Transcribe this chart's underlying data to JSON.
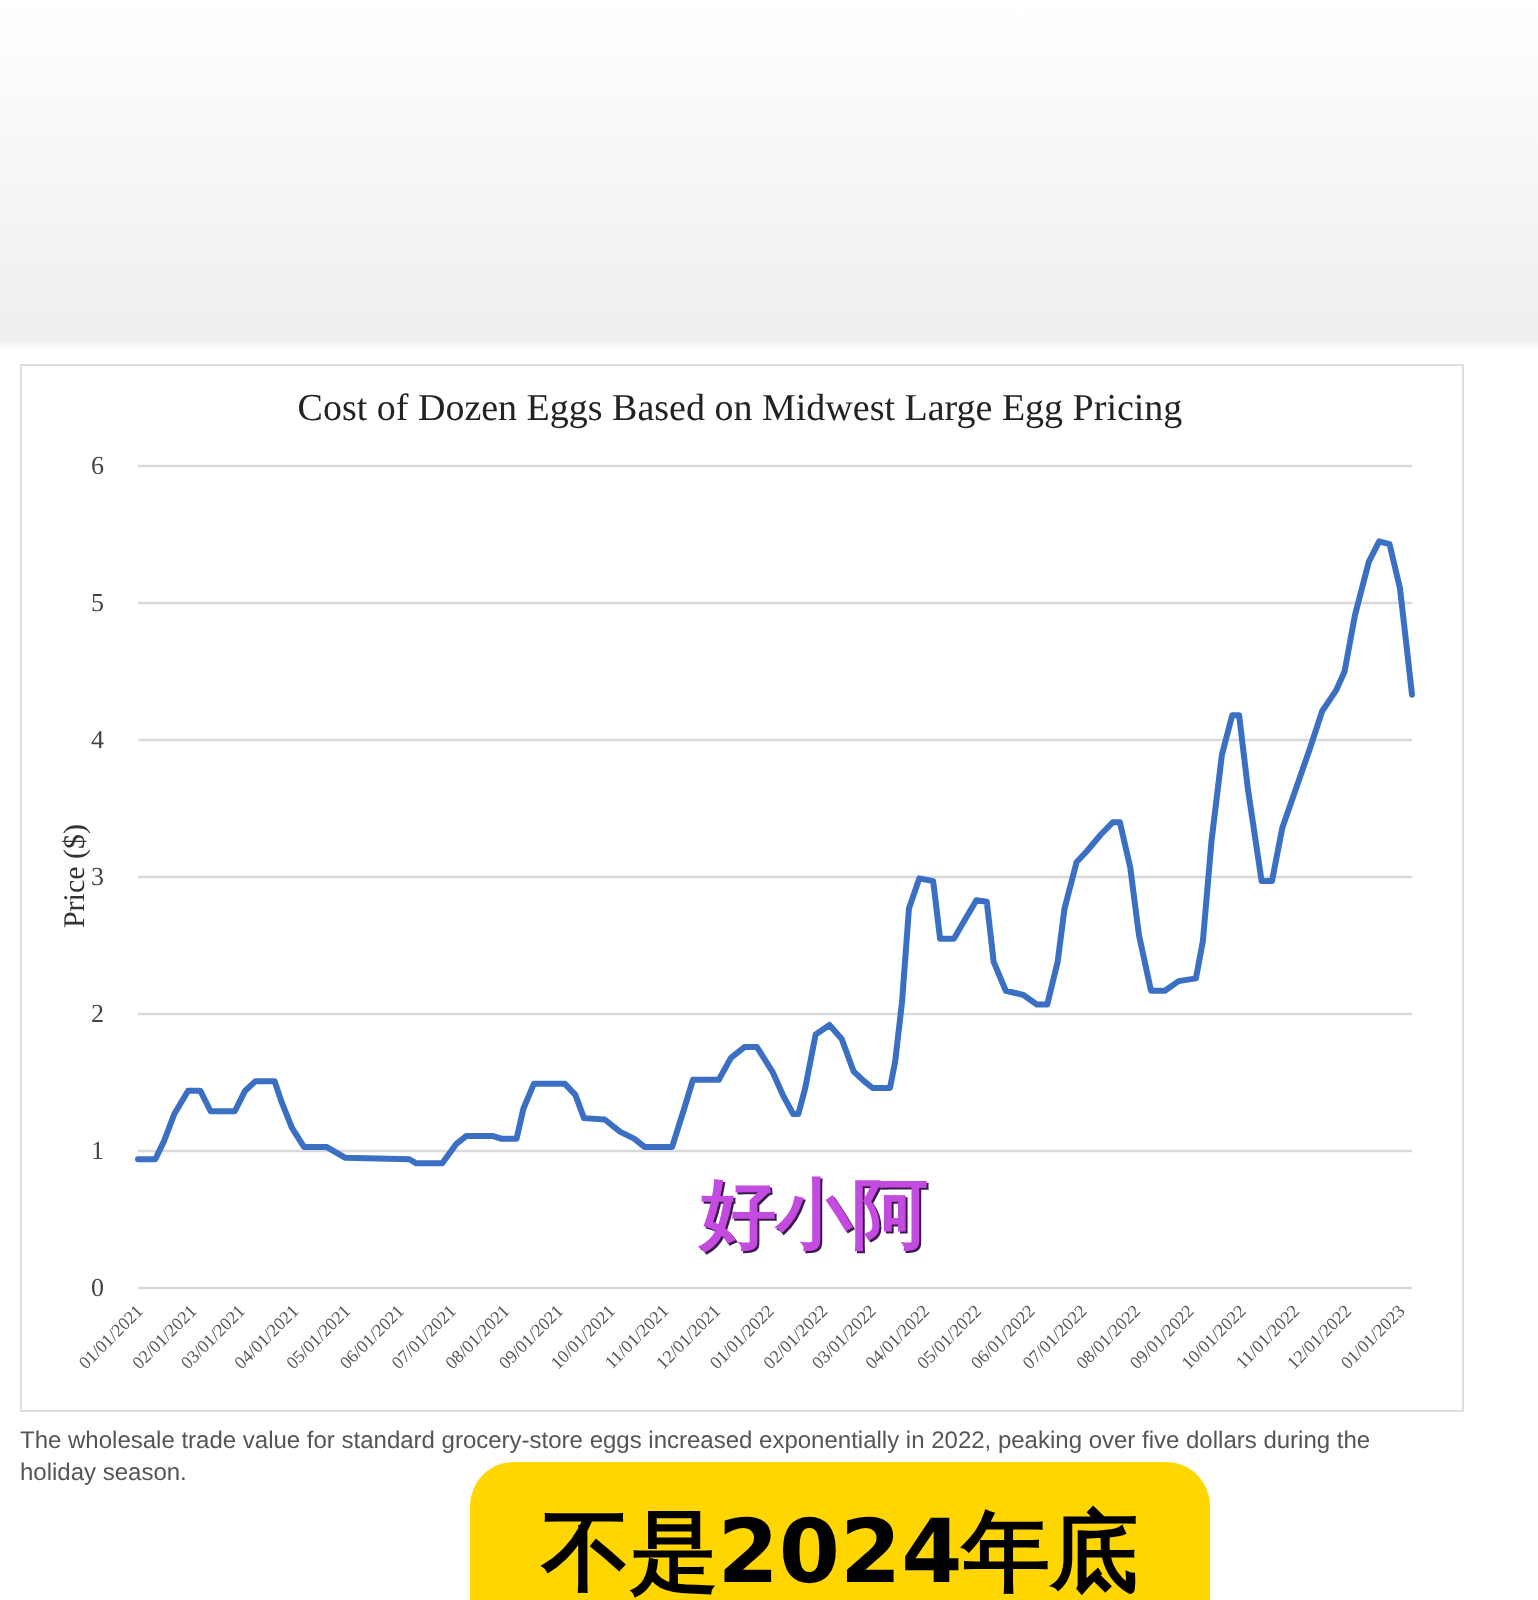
{
  "chart_data": {
    "type": "line",
    "title": "Cost of Dozen Eggs Based on Midwest Large Egg Pricing",
    "ylabel": "Price ($)",
    "x": [
      "2021-01-01",
      "2021-01-11",
      "2021-01-16",
      "2021-01-22",
      "2021-01-30",
      "2021-02-06",
      "2021-02-12",
      "2021-02-26",
      "2021-03-04",
      "2021-03-10",
      "2021-03-21",
      "2021-03-25",
      "2021-03-31",
      "2021-04-07",
      "2021-04-20",
      "2021-05-01",
      "2021-06-07",
      "2021-06-11",
      "2021-06-26",
      "2021-07-04",
      "2021-07-10",
      "2021-07-25",
      "2021-07-30",
      "2021-08-08",
      "2021-08-12",
      "2021-08-18",
      "2021-09-05",
      "2021-09-11",
      "2021-09-16",
      "2021-09-28",
      "2021-10-07",
      "2021-10-15",
      "2021-10-21",
      "2021-11-06",
      "2021-11-13",
      "2021-11-18",
      "2021-12-03",
      "2021-12-10",
      "2021-12-18",
      "2021-12-25",
      "2022-01-03",
      "2022-01-09",
      "2022-01-15",
      "2022-01-18",
      "2022-01-22",
      "2022-01-28",
      "2022-02-05",
      "2022-02-12",
      "2022-02-19",
      "2022-02-25",
      "2022-03-02",
      "2022-03-12",
      "2022-03-15",
      "2022-03-19",
      "2022-03-23",
      "2022-03-29",
      "2022-04-06",
      "2022-04-10",
      "2022-04-18",
      "2022-04-24",
      "2022-05-01",
      "2022-05-07",
      "2022-05-11",
      "2022-05-18",
      "2022-05-28",
      "2022-06-05",
      "2022-06-11",
      "2022-06-17",
      "2022-06-21",
      "2022-06-28",
      "2022-07-04",
      "2022-07-12",
      "2022-07-19",
      "2022-07-23",
      "2022-07-29",
      "2022-08-03",
      "2022-08-10",
      "2022-08-18",
      "2022-08-26",
      "2022-09-05",
      "2022-09-09",
      "2022-09-14",
      "2022-09-20",
      "2022-09-26",
      "2022-09-30",
      "2022-10-05",
      "2022-10-13",
      "2022-10-19",
      "2022-10-25",
      "2022-11-02",
      "2022-11-10",
      "2022-11-17",
      "2022-11-25",
      "2022-11-30",
      "2022-12-06",
      "2022-12-14",
      "2022-12-20",
      "2022-12-26",
      "2023-01-01",
      "2023-01-05",
      "2023-01-08"
    ],
    "series": [
      {
        "color": "#3b6fc4",
        "values": [
          0.94,
          0.94,
          1.07,
          1.27,
          1.44,
          1.44,
          1.29,
          1.29,
          1.44,
          1.51,
          1.51,
          1.36,
          1.17,
          1.03,
          1.03,
          0.95,
          0.94,
          0.91,
          0.91,
          1.05,
          1.11,
          1.11,
          1.09,
          1.09,
          1.31,
          1.49,
          1.49,
          1.41,
          1.24,
          1.23,
          1.14,
          1.09,
          1.03,
          1.03,
          1.31,
          1.52,
          1.52,
          1.68,
          1.76,
          1.76,
          1.58,
          1.41,
          1.27,
          1.27,
          1.46,
          1.85,
          1.92,
          1.82,
          1.58,
          1.51,
          1.46,
          1.46,
          1.65,
          2.09,
          2.77,
          2.99,
          2.97,
          2.55,
          2.55,
          2.68,
          2.83,
          2.82,
          2.38,
          2.17,
          2.14,
          2.07,
          2.07,
          2.38,
          2.77,
          3.11,
          3.19,
          3.31,
          3.4,
          3.4,
          3.07,
          2.58,
          2.17,
          2.17,
          2.24,
          2.26,
          2.53,
          3.26,
          3.89,
          4.18,
          4.18,
          3.65,
          2.97,
          2.97,
          3.36,
          3.65,
          3.94,
          4.21,
          4.36,
          4.5,
          4.91,
          5.3,
          5.45,
          5.43,
          5.11,
          4.67,
          4.33
        ]
      }
    ],
    "xlim": [
      "2021-01-01",
      "2023-01-08"
    ],
    "xticks": [
      {
        "value": "2021-01-01",
        "label": "01/01/2021"
      },
      {
        "value": "2021-02-01",
        "label": "02/01/2021"
      },
      {
        "value": "2021-03-01",
        "label": "03/01/2021"
      },
      {
        "value": "2021-04-01",
        "label": "04/01/2021"
      },
      {
        "value": "2021-05-01",
        "label": "05/01/2021"
      },
      {
        "value": "2021-06-01",
        "label": "06/01/2021"
      },
      {
        "value": "2021-07-01",
        "label": "07/01/2021"
      },
      {
        "value": "2021-08-01",
        "label": "08/01/2021"
      },
      {
        "value": "2021-09-01",
        "label": "09/01/2021"
      },
      {
        "value": "2021-10-01",
        "label": "10/01/2021"
      },
      {
        "value": "2021-11-01",
        "label": "11/01/2021"
      },
      {
        "value": "2021-12-01",
        "label": "12/01/2021"
      },
      {
        "value": "2022-01-01",
        "label": "01/01/2022"
      },
      {
        "value": "2022-02-01",
        "label": "02/01/2022"
      },
      {
        "value": "2022-03-01",
        "label": "03/01/2022"
      },
      {
        "value": "2022-04-01",
        "label": "04/01/2022"
      },
      {
        "value": "2022-05-01",
        "label": "05/01/2022"
      },
      {
        "value": "2022-06-01",
        "label": "06/01/2022"
      },
      {
        "value": "2022-07-01",
        "label": "07/01/2022"
      },
      {
        "value": "2022-08-01",
        "label": "08/01/2022"
      },
      {
        "value": "2022-09-01",
        "label": "09/01/2022"
      },
      {
        "value": "2022-10-01",
        "label": "10/01/2022"
      },
      {
        "value": "2022-11-01",
        "label": "11/01/2022"
      },
      {
        "value": "2022-12-01",
        "label": "12/01/2022"
      },
      {
        "value": "2023-01-01",
        "label": "01/01/2023"
      }
    ],
    "ylim": [
      0,
      6
    ],
    "yticks": [
      0,
      1,
      2,
      3,
      4,
      5,
      6
    ],
    "grid": "y",
    "annotations": [
      "The wholesale trade value for standard grocery-store eggs increased exponentially in 2022, peaking over five dollars during the holiday season.",
      "好小阿",
      "不是2024年底"
    ]
  }
}
